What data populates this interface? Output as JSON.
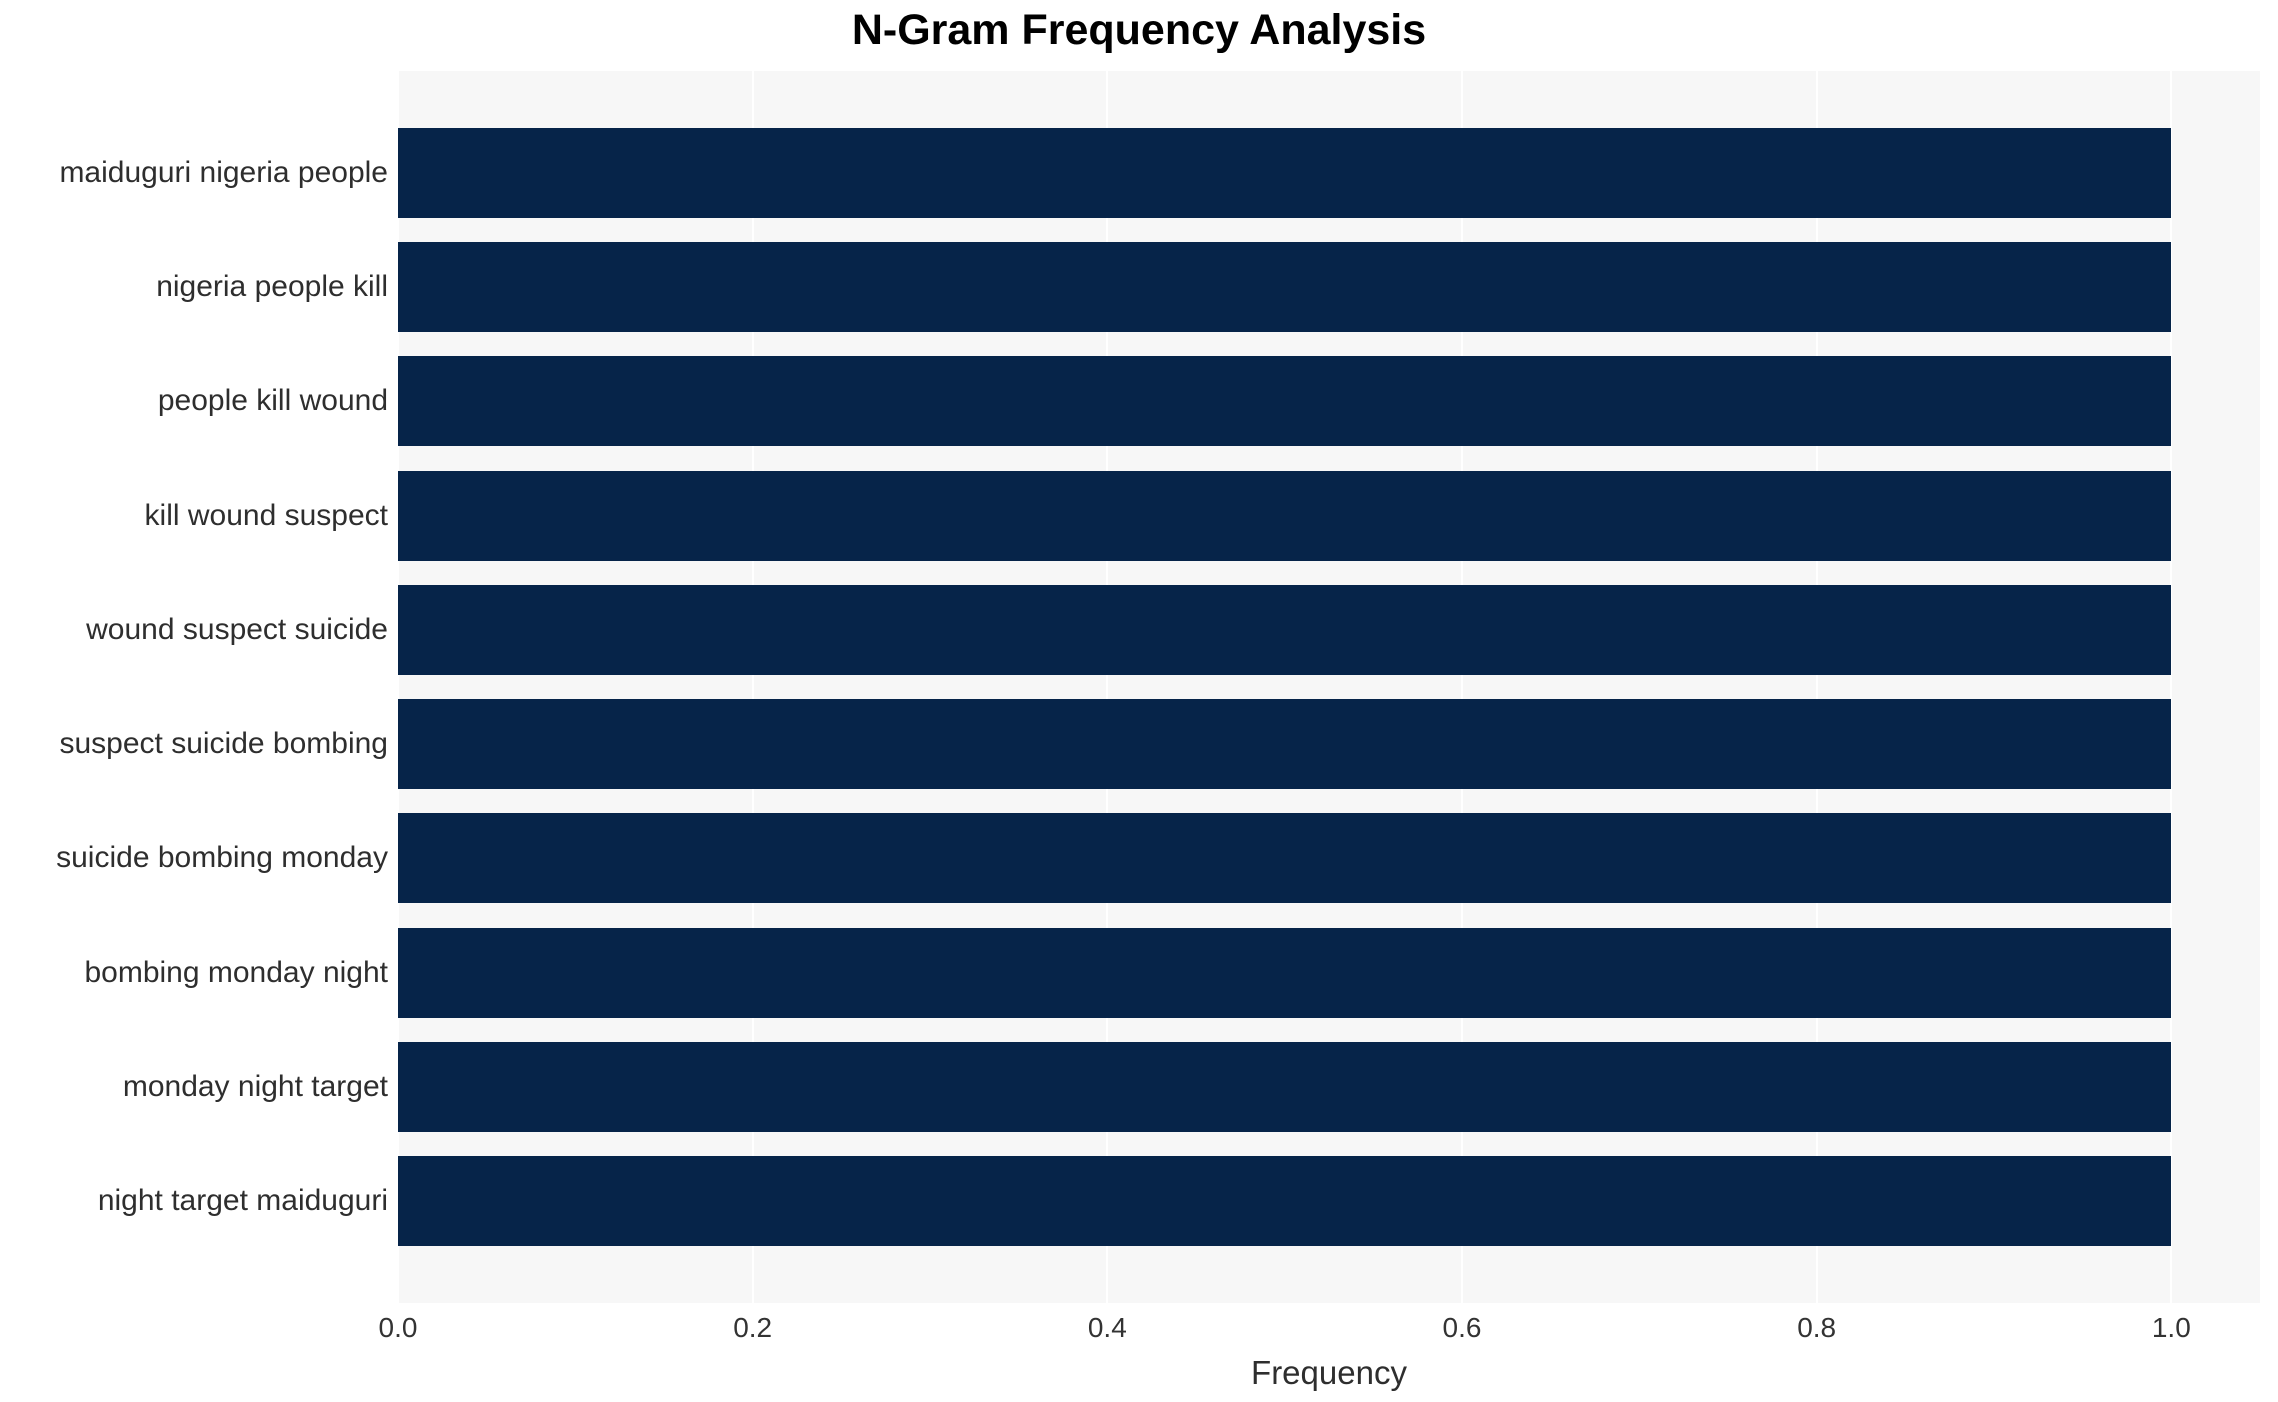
{
  "title": "N-Gram Frequency Analysis",
  "chart_data": {
    "type": "bar",
    "orientation": "horizontal",
    "title": "N-Gram Frequency Analysis",
    "xlabel": "Frequency",
    "ylabel": "",
    "categories": [
      "maiduguri nigeria people",
      "nigeria people kill",
      "people kill wound",
      "kill wound suspect",
      "wound suspect suicide",
      "suspect suicide bombing",
      "suicide bombing monday",
      "bombing monday night",
      "monday night target",
      "night target maiduguri"
    ],
    "values": [
      1.0,
      1.0,
      1.0,
      1.0,
      1.0,
      1.0,
      1.0,
      1.0,
      1.0,
      1.0
    ],
    "xlim": [
      0,
      1.05
    ],
    "xticks": [
      0.0,
      0.2,
      0.4,
      0.6,
      0.8,
      1.0
    ],
    "xtick_labels": [
      "0.0",
      "0.2",
      "0.4",
      "0.6",
      "0.8",
      "1.0"
    ],
    "grid": true,
    "legend_position": "none",
    "colors": {
      "bar": "#062449",
      "plot_background": "#f7f7f7",
      "figure_background": "#ffffff",
      "gridline": "#ffffff",
      "tick_text": "#333333",
      "label_text": "#2e2e2e",
      "title_text": "#000000"
    }
  }
}
